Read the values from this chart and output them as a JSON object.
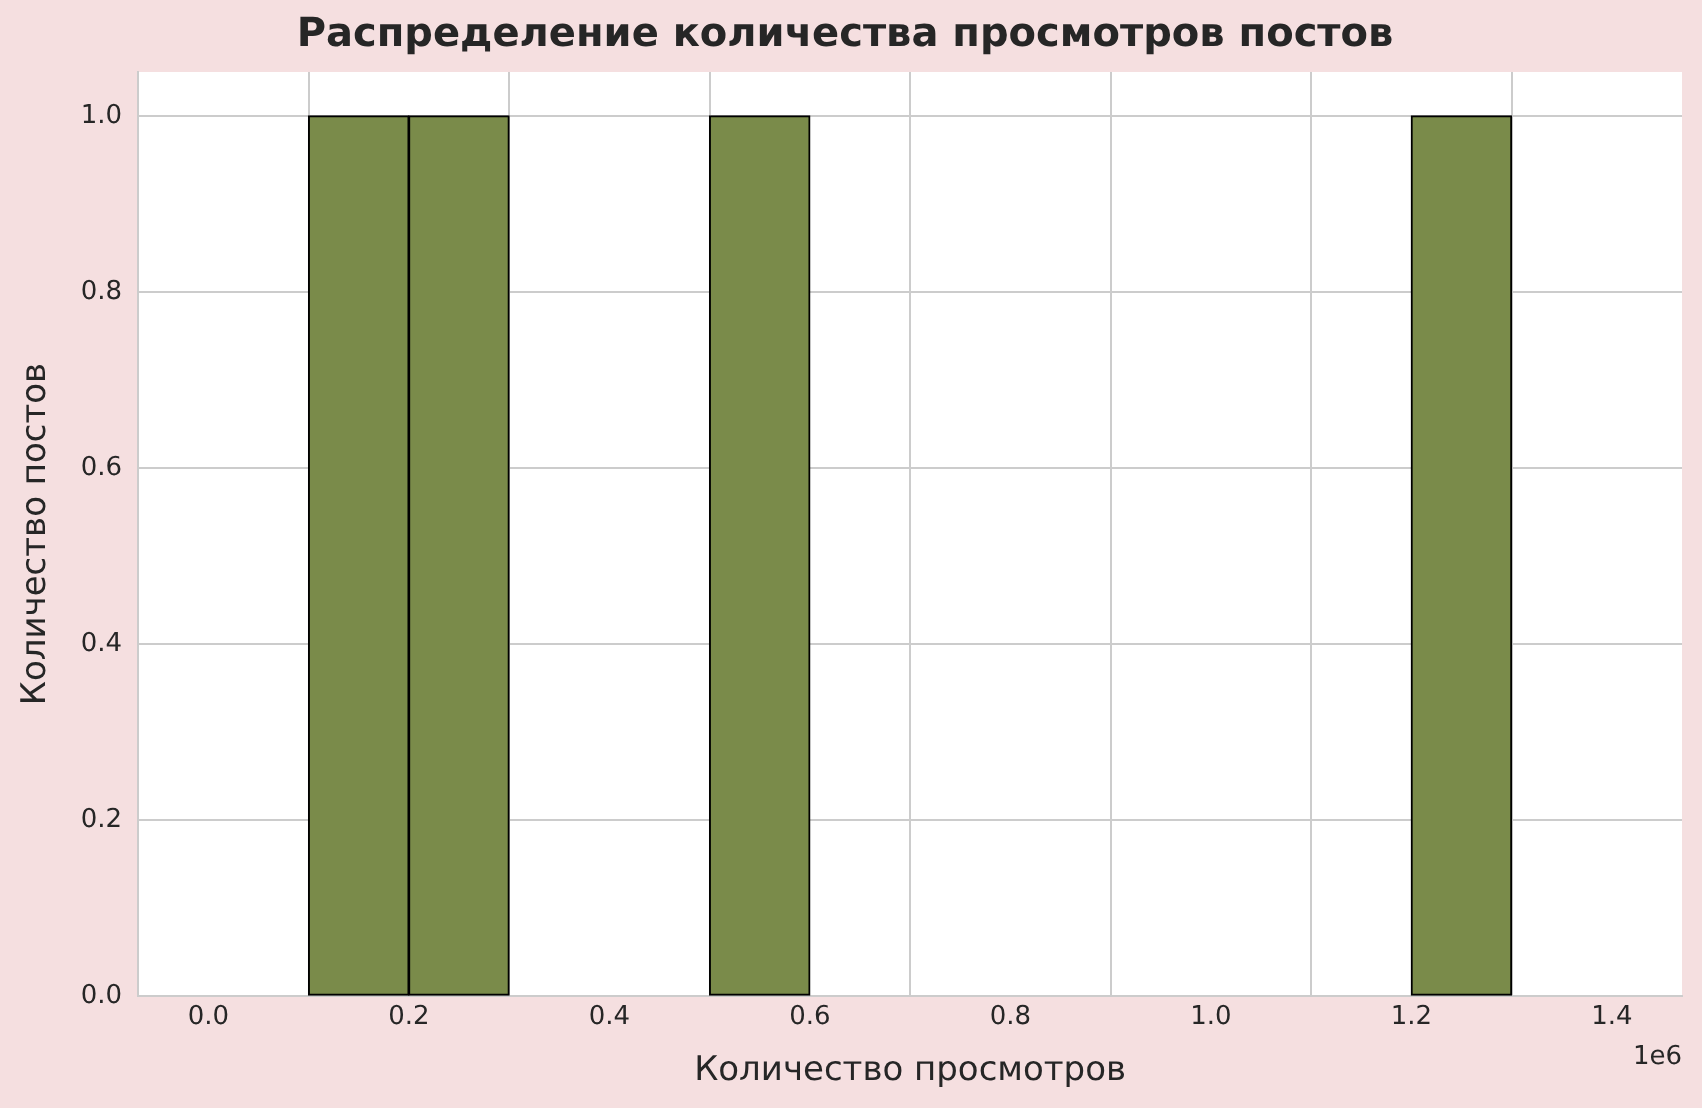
{
  "chart_data": {
    "type": "histogram",
    "title": "Распределение количества просмотров постов",
    "xlabel": "Количество просмотров",
    "ylabel": "Количество постов",
    "bins": [
      0,
      0.1,
      0.2,
      0.3,
      0.4,
      0.5,
      0.6,
      0.7,
      0.8,
      0.9,
      1.0,
      1.1,
      1.2,
      1.3,
      1.4
    ],
    "values": [
      0,
      1,
      1,
      0,
      0,
      1,
      0,
      0,
      0,
      0,
      0,
      0,
      1,
      0
    ],
    "color": "#7a8b4a",
    "xlim": [
      -0.07,
      1.47
    ],
    "xticks": [
      {
        "value": 0,
        "label": "0.0"
      },
      0.2,
      0.4,
      0.6,
      0.8,
      {
        "value": 1,
        "label": "1.0"
      },
      1.2,
      1.4
    ],
    "ylim": [
      0,
      1.05
    ],
    "yticks": [
      {
        "value": 0,
        "label": "0.0"
      },
      0.2,
      0.4,
      0.6,
      0.8,
      {
        "value": 1,
        "label": "1.0"
      }
    ],
    "grid": true,
    "legend": false,
    "annotations": [
      "1e6"
    ]
  }
}
